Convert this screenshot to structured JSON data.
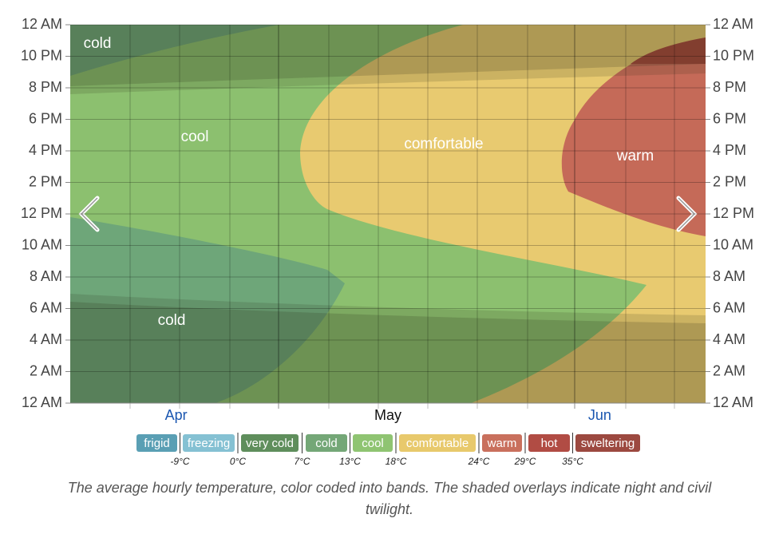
{
  "chart_data": {
    "type": "heatmap",
    "categories": [
      "Apr",
      "May",
      "Jun"
    ],
    "category_colors": [
      "#1a56b0",
      "#111111",
      "#1a56b0"
    ],
    "ylim": [
      0,
      24
    ],
    "yticks": [
      {
        "value": 0,
        "label": "12 AM"
      },
      {
        "value": 2,
        "label": "2 AM"
      },
      {
        "value": 4,
        "label": "4 AM"
      },
      {
        "value": 6,
        "label": "6 AM"
      },
      {
        "value": 8,
        "label": "8 AM"
      },
      {
        "value": 10,
        "label": "10 AM"
      },
      {
        "value": 12,
        "label": "12 PM"
      },
      {
        "value": 14,
        "label": "2 PM"
      },
      {
        "value": 16,
        "label": "4 PM"
      },
      {
        "value": 18,
        "label": "6 PM"
      },
      {
        "value": 20,
        "label": "8 PM"
      },
      {
        "value": 22,
        "label": "10 PM"
      },
      {
        "value": 24,
        "label": "12 AM"
      }
    ],
    "grid": true,
    "band_labels": [
      "cold",
      "cool",
      "comfortable",
      "warm",
      "cold"
    ],
    "legend": [
      {
        "name": "frigid",
        "color": "#5a9fb4"
      },
      {
        "name": "freezing",
        "color": "#85c1d3"
      },
      {
        "name": "very cold",
        "color": "#5f8e5c"
      },
      {
        "name": "cold",
        "color": "#74a777"
      },
      {
        "name": "cool",
        "color": "#8fc472"
      },
      {
        "name": "comfortable",
        "color": "#e8c96c"
      },
      {
        "name": "warm",
        "color": "#c9705d"
      },
      {
        "name": "hot",
        "color": "#b14c44"
      },
      {
        "name": "sweltering",
        "color": "#9c4940"
      }
    ],
    "legend_thresholds": [
      {
        "value": -9,
        "label": "-9°C"
      },
      {
        "value": 0,
        "label": "0°C"
      },
      {
        "value": 7,
        "label": "7°C"
      },
      {
        "value": 13,
        "label": "13°C"
      },
      {
        "value": 18,
        "label": "18°C"
      },
      {
        "value": 24,
        "label": "24°C"
      },
      {
        "value": 29,
        "label": "29°C"
      },
      {
        "value": 35,
        "label": "35°C"
      }
    ],
    "caption": "The average hourly temperature, color coded into bands. The shaded overlays indicate night and civil twilight."
  }
}
